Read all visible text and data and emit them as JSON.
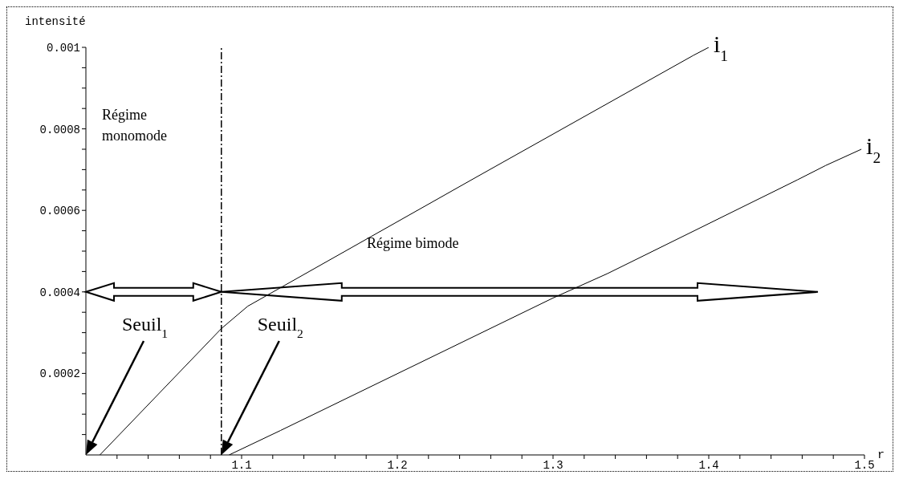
{
  "chart_data": {
    "type": "line",
    "xlabel": "r",
    "ylabel": "intensité",
    "xlim": [
      1.0,
      1.5
    ],
    "xticks": [
      {
        "value": 1.02,
        "label": null
      },
      {
        "value": 1.04,
        "label": null
      },
      {
        "value": 1.06,
        "label": null
      },
      {
        "value": 1.08,
        "label": null
      },
      1.1,
      {
        "value": 1.12,
        "label": null
      },
      {
        "value": 1.14,
        "label": null
      },
      {
        "value": 1.16,
        "label": null
      },
      {
        "value": 1.18,
        "label": null
      },
      1.2,
      {
        "value": 1.22,
        "label": null
      },
      {
        "value": 1.24,
        "label": null
      },
      {
        "value": 1.26,
        "label": null
      },
      {
        "value": 1.28,
        "label": null
      },
      1.3,
      {
        "value": 1.32,
        "label": null
      },
      {
        "value": 1.34,
        "label": null
      },
      {
        "value": 1.36,
        "label": null
      },
      {
        "value": 1.38,
        "label": null
      },
      1.4,
      {
        "value": 1.42,
        "label": null
      },
      {
        "value": 1.44,
        "label": null
      },
      {
        "value": 1.46,
        "label": null
      },
      {
        "value": 1.48,
        "label": null
      },
      1.5
    ],
    "ylim": [
      0,
      0.001
    ],
    "yticks": [
      {
        "value": 5e-05,
        "label": null
      },
      {
        "value": 0.0001,
        "label": null
      },
      {
        "value": 0.00015,
        "label": null
      },
      0.0002,
      {
        "value": 0.00025,
        "label": null
      },
      {
        "value": 0.0003,
        "label": null
      },
      {
        "value": 0.00035,
        "label": null
      },
      0.0004,
      {
        "value": 0.00045,
        "label": null
      },
      {
        "value": 0.0005,
        "label": null
      },
      {
        "value": 0.00055,
        "label": null
      },
      0.0006,
      {
        "value": 0.00065,
        "label": null
      },
      {
        "value": 0.0007,
        "label": null
      },
      {
        "value": 0.00075,
        "label": null
      },
      0.0008,
      {
        "value": 0.00085,
        "label": null
      },
      {
        "value": 0.0009,
        "label": null
      },
      {
        "value": 0.00095,
        "label": null
      },
      0.001
    ],
    "marker": "none",
    "line_style": "solid",
    "series": [
      {
        "name": "i$_{1}$",
        "color": "#000000",
        "x": [
          1.009,
          1.087,
          1.104,
          1.25,
          1.39,
          1.4
        ],
        "values": [
          0,
          0.00031,
          0.000365,
          0.00068,
          0.00098,
          0.001
        ]
      },
      {
        "name": "i$_{2}$",
        "color": "#000000",
        "x": [
          1.092,
          1.125,
          1.3,
          1.335,
          1.457,
          1.475,
          1.498
        ],
        "values": [
          0,
          6e-05,
          0.000385,
          0.000445,
          0.000675,
          0.00071,
          0.00075
        ]
      }
    ],
    "ref_lines": [
      {
        "axis": "x",
        "value": 1.087,
        "color": "#000000",
        "line_style": "dashed"
      }
    ],
    "annotations": [
      "Régime monomode",
      "Régime bimode",
      "Seuil$_{1}$",
      "Seuil$_{2}$"
    ]
  }
}
